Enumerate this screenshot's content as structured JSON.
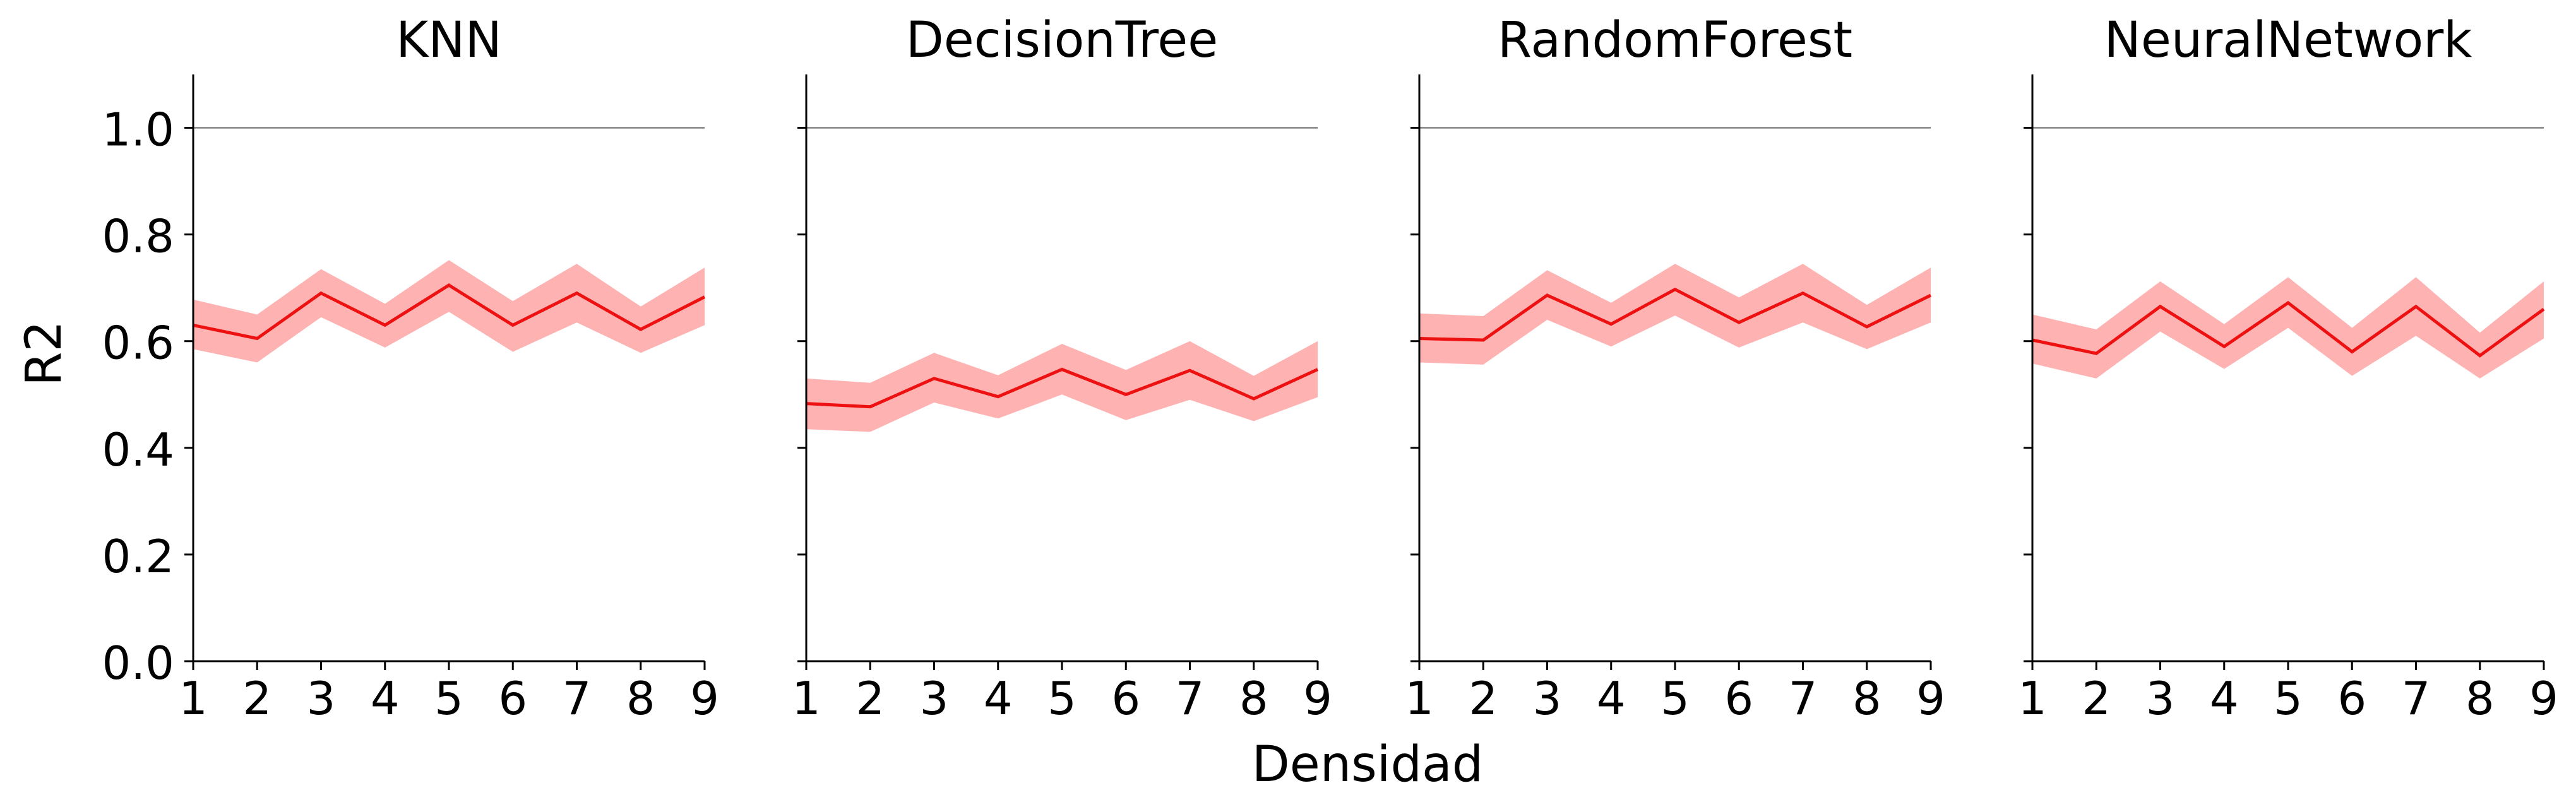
{
  "figure": {
    "ylabel": "R2",
    "xlabel": "Densidad"
  },
  "chart_data": [
    {
      "type": "line",
      "title": "KNN",
      "x": [
        1,
        2,
        3,
        4,
        5,
        6,
        7,
        8,
        9
      ],
      "ylim": [
        0.0,
        1.1
      ],
      "xlim": [
        1,
        9
      ],
      "yticks": [
        "0.0",
        "0.2",
        "0.4",
        "0.6",
        "0.8",
        "1.0"
      ],
      "reference_line": 1.0,
      "series": [
        {
          "values": [
            0.63,
            0.605,
            0.69,
            0.63,
            0.705,
            0.63,
            0.69,
            0.622,
            0.683
          ],
          "lower": [
            0.585,
            0.56,
            0.645,
            0.588,
            0.655,
            0.58,
            0.635,
            0.578,
            0.63
          ],
          "upper": [
            0.678,
            0.65,
            0.735,
            0.67,
            0.752,
            0.675,
            0.745,
            0.665,
            0.738
          ]
        }
      ]
    },
    {
      "type": "line",
      "title": "DecisionTree",
      "x": [
        1,
        2,
        3,
        4,
        5,
        6,
        7,
        8,
        9
      ],
      "ylim": [
        0.0,
        1.1
      ],
      "xlim": [
        1,
        9
      ],
      "yticks": [
        "0.0",
        "0.2",
        "0.4",
        "0.6",
        "0.8",
        "1.0"
      ],
      "reference_line": 1.0,
      "series": [
        {
          "values": [
            0.483,
            0.477,
            0.53,
            0.496,
            0.547,
            0.5,
            0.545,
            0.492,
            0.547
          ],
          "lower": [
            0.435,
            0.43,
            0.485,
            0.455,
            0.5,
            0.452,
            0.49,
            0.45,
            0.495
          ],
          "upper": [
            0.53,
            0.522,
            0.578,
            0.536,
            0.595,
            0.546,
            0.6,
            0.535,
            0.6
          ]
        }
      ]
    },
    {
      "type": "line",
      "title": "RandomForest",
      "x": [
        1,
        2,
        3,
        4,
        5,
        6,
        7,
        8,
        9
      ],
      "ylim": [
        0.0,
        1.1
      ],
      "xlim": [
        1,
        9
      ],
      "yticks": [
        "0.0",
        "0.2",
        "0.4",
        "0.6",
        "0.8",
        "1.0"
      ],
      "reference_line": 1.0,
      "series": [
        {
          "values": [
            0.605,
            0.602,
            0.686,
            0.632,
            0.697,
            0.635,
            0.69,
            0.627,
            0.686
          ],
          "lower": [
            0.56,
            0.556,
            0.64,
            0.59,
            0.648,
            0.588,
            0.635,
            0.585,
            0.635
          ],
          "upper": [
            0.652,
            0.647,
            0.733,
            0.672,
            0.745,
            0.682,
            0.745,
            0.668,
            0.738
          ]
        }
      ]
    },
    {
      "type": "line",
      "title": "NeuralNetwork",
      "x": [
        1,
        2,
        3,
        4,
        5,
        6,
        7,
        8,
        9
      ],
      "ylim": [
        0.0,
        1.1
      ],
      "xlim": [
        1,
        9
      ],
      "yticks": [
        "0.0",
        "0.2",
        "0.4",
        "0.6",
        "0.8",
        "1.0"
      ],
      "reference_line": 1.0,
      "series": [
        {
          "values": [
            0.602,
            0.577,
            0.665,
            0.59,
            0.672,
            0.58,
            0.665,
            0.573,
            0.66
          ],
          "lower": [
            0.558,
            0.53,
            0.618,
            0.548,
            0.625,
            0.535,
            0.61,
            0.53,
            0.605
          ],
          "upper": [
            0.65,
            0.622,
            0.712,
            0.632,
            0.72,
            0.625,
            0.72,
            0.616,
            0.712
          ]
        }
      ]
    }
  ],
  "colors": {
    "line": "#ee1111",
    "band": "#ffb2b2",
    "reference": "#808080",
    "axis": "#000000"
  }
}
